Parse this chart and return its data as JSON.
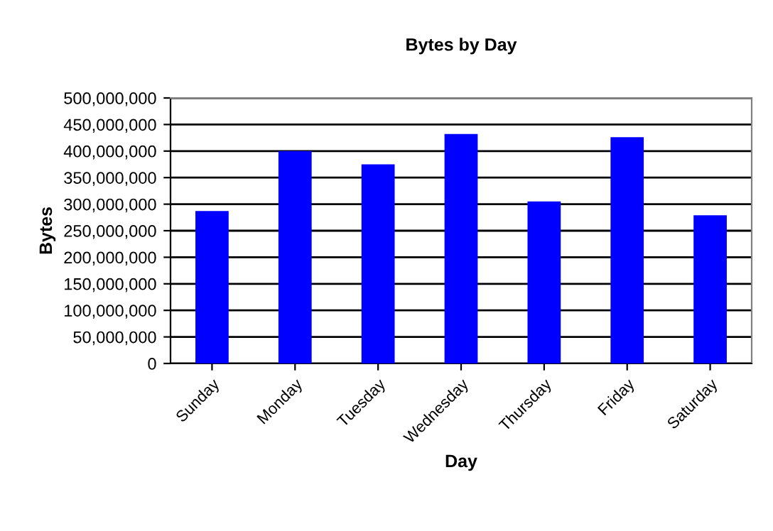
{
  "chart_data": {
    "type": "bar",
    "title": "Bytes by Day",
    "xlabel": "Day",
    "ylabel": "Bytes",
    "categories": [
      "Sunday",
      "Monday",
      "Tuesday",
      "Wednesday",
      "Thursday",
      "Friday",
      "Saturday"
    ],
    "values": [
      287000000,
      400000000,
      375000000,
      432000000,
      305000000,
      426000000,
      279000000
    ],
    "color": "#0000ff",
    "ylim": [
      0,
      500000000
    ],
    "yticks": [
      {
        "value": 0,
        "label": "0"
      },
      {
        "value": 50000000,
        "label": "50,000,000"
      },
      {
        "value": 100000000,
        "label": "100,000,000"
      },
      {
        "value": 150000000,
        "label": "150,000,000"
      },
      {
        "value": 200000000,
        "label": "200,000,000"
      },
      {
        "value": 250000000,
        "label": "250,000,000"
      },
      {
        "value": 300000000,
        "label": "300,000,000"
      },
      {
        "value": 350000000,
        "label": "350,000,000"
      },
      {
        "value": 400000000,
        "label": "400,000,000"
      },
      {
        "value": 450000000,
        "label": "450,000,000"
      },
      {
        "value": 500000000,
        "label": "500,000,000"
      }
    ],
    "grid": "y"
  }
}
